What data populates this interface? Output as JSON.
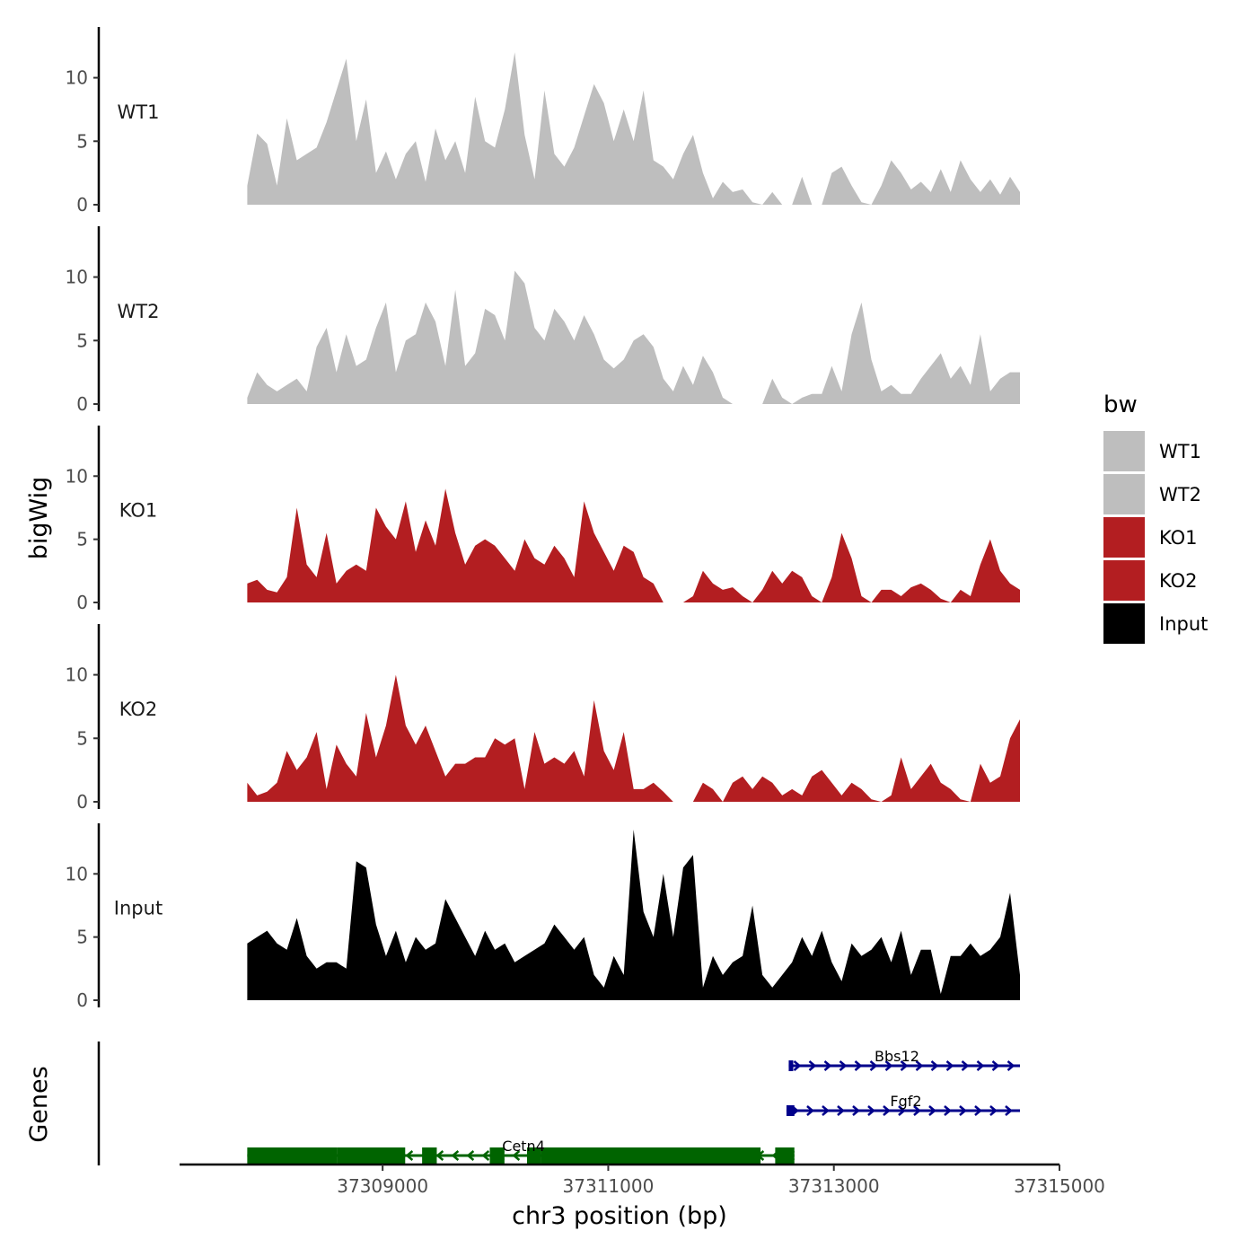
{
  "chart_data": {
    "type": "area",
    "title": "",
    "xlabel": "chr3 position (bp)",
    "ylabel": "bigWig",
    "genes_axis_label": "Genes",
    "xlim": [
      37307200,
      37315000
    ],
    "xticks": [
      37309000,
      37311000,
      37313000,
      37315000
    ],
    "xtick_labels": [
      "37309000",
      "37311000",
      "37313000",
      "37315000"
    ],
    "ylim": [
      0,
      14
    ],
    "yticks": [
      0,
      5,
      10
    ],
    "ytick_labels": [
      "0",
      "5",
      "10"
    ],
    "legend_title": "bw",
    "legend_position": "right",
    "series": [
      {
        "name": "WT1",
        "color": "#bebebe",
        "x_start": 37307800,
        "x_end": 37314650,
        "values": [
          1.5,
          5.6,
          4.8,
          1.5,
          6.8,
          3.5,
          4.0,
          4.5,
          6.5,
          9.0,
          11.5,
          5.0,
          8.3,
          2.5,
          4.2,
          2.0,
          4.0,
          5.0,
          1.8,
          6.0,
          3.5,
          5.0,
          2.5,
          8.5,
          5.0,
          4.5,
          7.5,
          12.0,
          5.5,
          2.0,
          9.0,
          4.0,
          3.0,
          4.5,
          7.0,
          9.5,
          8.0,
          5.0,
          7.5,
          5.0,
          9.0,
          3.5,
          3.0,
          2.0,
          4.0,
          5.5,
          2.5,
          0.5,
          1.8,
          1.0,
          1.2,
          0.2,
          0.0,
          1.0,
          0.0,
          0.0,
          2.2,
          0.0,
          0.0,
          2.5,
          3.0,
          1.5,
          0.2,
          0.0,
          1.5,
          3.5,
          2.5,
          1.2,
          1.8,
          1.0,
          2.8,
          1.0,
          3.5,
          2.0,
          1.0,
          2.0,
          0.8,
          2.2,
          1.0
        ]
      },
      {
        "name": "WT2",
        "color": "#bebebe",
        "x_start": 37307800,
        "x_end": 37314650,
        "values": [
          0.5,
          2.5,
          1.5,
          1.0,
          1.5,
          2.0,
          1.0,
          4.5,
          6.0,
          2.5,
          5.5,
          3.0,
          3.5,
          6.0,
          8.0,
          2.5,
          5.0,
          5.5,
          8.0,
          6.5,
          3.0,
          9.0,
          3.0,
          4.0,
          7.5,
          7.0,
          5.0,
          10.5,
          9.5,
          6.0,
          5.0,
          7.5,
          6.5,
          5.0,
          7.0,
          5.5,
          3.5,
          2.8,
          3.5,
          5.0,
          5.5,
          4.5,
          2.0,
          1.0,
          3.0,
          1.5,
          3.8,
          2.5,
          0.5,
          0.0,
          0.0,
          0.0,
          0.0,
          2.0,
          0.5,
          0.0,
          0.5,
          0.8,
          0.8,
          3.0,
          1.0,
          5.5,
          8.0,
          3.5,
          1.0,
          1.5,
          0.8,
          0.8,
          2.0,
          3.0,
          4.0,
          2.0,
          3.0,
          1.5,
          5.5,
          1.0,
          2.0,
          2.5,
          2.5
        ]
      },
      {
        "name": "KO1",
        "color": "#b31e21",
        "x_start": 37307800,
        "x_end": 37314650,
        "values": [
          1.5,
          1.8,
          1.0,
          0.8,
          2.0,
          7.5,
          3.0,
          2.0,
          5.5,
          1.5,
          2.5,
          3.0,
          2.5,
          7.5,
          6.0,
          5.0,
          8.0,
          4.0,
          6.5,
          4.5,
          9.0,
          5.5,
          3.0,
          4.5,
          5.0,
          4.5,
          3.5,
          2.5,
          5.0,
          3.5,
          3.0,
          4.5,
          3.5,
          2.0,
          8.0,
          5.5,
          4.0,
          2.5,
          4.5,
          4.0,
          2.0,
          1.5,
          0.0,
          0.0,
          0.0,
          0.5,
          2.5,
          1.5,
          1.0,
          1.2,
          0.5,
          0.0,
          1.0,
          2.5,
          1.5,
          2.5,
          2.0,
          0.5,
          0.0,
          2.0,
          5.5,
          3.5,
          0.5,
          0.0,
          1.0,
          1.0,
          0.5,
          1.2,
          1.5,
          1.0,
          0.3,
          0.0,
          1.0,
          0.5,
          3.0,
          5.0,
          2.5,
          1.5,
          1.0
        ]
      },
      {
        "name": "KO2",
        "color": "#b31e21",
        "x_start": 37307800,
        "x_end": 37314650,
        "values": [
          1.5,
          0.5,
          0.8,
          1.5,
          4.0,
          2.5,
          3.5,
          5.5,
          1.0,
          4.5,
          3.0,
          2.0,
          7.0,
          3.5,
          6.0,
          10.0,
          6.0,
          4.5,
          6.0,
          4.0,
          2.0,
          3.0,
          3.0,
          3.5,
          3.5,
          5.0,
          4.5,
          5.0,
          1.0,
          5.5,
          3.0,
          3.5,
          3.0,
          4.0,
          2.0,
          8.0,
          4.0,
          2.5,
          5.5,
          1.0,
          1.0,
          1.5,
          0.8,
          0.0,
          0.0,
          0.0,
          1.5,
          1.0,
          0.0,
          1.5,
          2.0,
          1.0,
          2.0,
          1.5,
          0.5,
          1.0,
          0.5,
          2.0,
          2.5,
          1.5,
          0.5,
          1.5,
          1.0,
          0.2,
          0.0,
          0.5,
          3.5,
          1.0,
          2.0,
          3.0,
          1.5,
          1.0,
          0.2,
          0.0,
          3.0,
          1.5,
          2.0,
          5.0,
          6.5
        ]
      },
      {
        "name": "Input",
        "color": "#000000",
        "x_start": 37307800,
        "x_end": 37314650,
        "values": [
          4.5,
          5.0,
          5.5,
          4.5,
          4.0,
          6.5,
          3.5,
          2.5,
          3.0,
          3.0,
          2.5,
          11.0,
          10.5,
          6.0,
          3.5,
          5.5,
          3.0,
          5.0,
          4.0,
          4.5,
          8.0,
          6.5,
          5.0,
          3.5,
          5.5,
          4.0,
          4.5,
          3.0,
          3.5,
          4.0,
          4.5,
          6.0,
          5.0,
          4.0,
          5.0,
          2.0,
          1.0,
          3.5,
          2.0,
          13.5,
          7.0,
          5.0,
          10.0,
          5.0,
          10.5,
          11.5,
          1.0,
          3.5,
          2.0,
          3.0,
          3.5,
          7.5,
          2.0,
          1.0,
          2.0,
          3.0,
          5.0,
          3.5,
          5.5,
          3.0,
          1.5,
          4.5,
          3.5,
          4.0,
          5.0,
          3.0,
          5.5,
          2.0,
          4.0,
          4.0,
          0.5,
          3.5,
          3.5,
          4.5,
          3.5,
          4.0,
          5.0,
          8.5,
          2.0
        ]
      }
    ],
    "genes": [
      {
        "name": "Bbs12",
        "color": "#00008b",
        "start": 37312600,
        "end": 37314650,
        "strand": "+",
        "row": 0,
        "exons": [
          {
            "start": 37312600,
            "end": 37312640
          }
        ]
      },
      {
        "name": "Fgf2",
        "color": "#00008b",
        "start": 37312580,
        "end": 37314650,
        "strand": "+",
        "row": 1,
        "exons": [
          {
            "start": 37312580,
            "end": 37312650
          }
        ]
      },
      {
        "name": "Cetn4",
        "color": "#006400",
        "start": 37307800,
        "end": 37312650,
        "strand": "-",
        "row": 2,
        "exons": [
          {
            "start": 37307800,
            "end": 37308600
          },
          {
            "start": 37308600,
            "end": 37309200
          },
          {
            "start": 37309350,
            "end": 37309480
          },
          {
            "start": 37309950,
            "end": 37310080
          },
          {
            "start": 37310280,
            "end": 37310400
          },
          {
            "start": 37310400,
            "end": 37312350
          },
          {
            "start": 37312480,
            "end": 37312650
          }
        ]
      }
    ]
  }
}
